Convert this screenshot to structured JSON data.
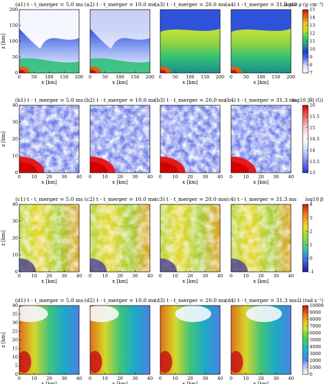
{
  "figure": {
    "rows": [
      {
        "id": "a",
        "titles": [
          "(a1) t - t_merger = 5.0 ms",
          "(a2) t - t_merger = 10.0 ms",
          "(a3) t - t_merger = 20.0 ms",
          "(a4) t - t_merger = 31.3 ms"
        ],
        "x_label": "x [km]",
        "y_label": "z [km]",
        "x_ticks": [
          "0",
          "50",
          "100",
          "150",
          "200"
        ],
        "x_range": [
          0,
          200
        ],
        "y_ticks": [
          "0",
          "50",
          "100",
          "150",
          "200"
        ],
        "y_range": [
          0,
          200
        ],
        "colorbar": {
          "label": "log10 ρ (g cm⁻³)",
          "ticks": [
            "7",
            "8",
            "9",
            "10",
            "11",
            "12",
            "13",
            "14",
            "15"
          ],
          "range": [
            7,
            15
          ],
          "colors": [
            "#ffffff",
            "#d8e3fb",
            "#5a78e8",
            "#1e3cc8",
            "#2a9a8a",
            "#2fcf63",
            "#bfe02a",
            "#f0c21a",
            "#e06a10",
            "#cf1010"
          ]
        }
      },
      {
        "id": "b",
        "titles": [
          "(b1) t - t_merger = 5.0 ms",
          "(b2) t - t_merger = 10.0 ms",
          "(b3) t - t_merger = 20.0 ms",
          "(b4) t - t_merger = 31.3 ms"
        ],
        "x_label": "x [km]",
        "y_label": "z [km]",
        "x_ticks": [
          "0",
          "10",
          "20",
          "30",
          "40"
        ],
        "x_range": [
          0,
          40
        ],
        "y_ticks": [
          "0",
          "10",
          "20",
          "30",
          "40"
        ],
        "y_range": [
          0,
          40
        ],
        "colorbar": {
          "label": "log10 |B| (G)",
          "ticks": [
            "13",
            "13.5",
            "14",
            "14.5",
            "15",
            "15.5",
            "16"
          ],
          "range": [
            13,
            16
          ],
          "colors": [
            "#2d2fd6",
            "#7a86ef",
            "#cfd6fb",
            "#ffffff",
            "#f7c9c9",
            "#ea6a6a",
            "#d40000"
          ]
        }
      },
      {
        "id": "c",
        "titles": [
          "(c1) t - t_merger = 5.0 ms",
          "(c2) t - t_merger = 10.0 ms",
          "(c3) t - t_merger = 20.0 ms",
          "(c4) t - t_merger = 31.3 ms"
        ],
        "x_label": "x [km]",
        "y_label": "z [km]",
        "x_ticks": [
          "0",
          "10",
          "20",
          "30",
          "40"
        ],
        "x_range": [
          0,
          40
        ],
        "y_ticks": [
          "0",
          "10",
          "20",
          "30",
          "40"
        ],
        "y_range": [
          0,
          40
        ],
        "colorbar": {
          "label": "log10 β",
          "ticks": [
            "-1",
            "0",
            "1",
            "2",
            "3",
            "4"
          ],
          "range": [
            -1,
            4
          ],
          "colors": [
            "#2a1a8c",
            "#3a6adf",
            "#36c2a6",
            "#8fd640",
            "#e8dc2a",
            "#f08a18",
            "#d21a10"
          ]
        }
      },
      {
        "id": "d",
        "titles": [
          "(d1) t - t_merger = 5.0 ms",
          "(d2) t - t_merger = 10.0 ms",
          "(d3) t - t_merger = 20.0 ms",
          "(d4) t - t_merger = 31.3 ms"
        ],
        "x_label": "x [km]",
        "y_label": "z [km]",
        "x_ticks": [
          "0",
          "10",
          "20",
          "30",
          "40"
        ],
        "x_range": [
          0,
          40
        ],
        "y_ticks": [
          "0",
          "5",
          "10",
          "15",
          "20",
          "25",
          "30",
          "35",
          "40"
        ],
        "y_range": [
          0,
          40
        ],
        "colorbar": {
          "label": "Ω (rad s⁻¹)",
          "ticks": [
            "0",
            "1000",
            "2000",
            "3000",
            "4000",
            "5000",
            "6000",
            "7000",
            "8000",
            "9000",
            "10000"
          ],
          "range": [
            0,
            10000
          ],
          "colors": [
            "#ffffff",
            "#b9c8f3",
            "#4f7de0",
            "#1fb0d8",
            "#2ec88e",
            "#5fd246",
            "#cfe12a",
            "#f0b81c",
            "#e0601a",
            "#c81414"
          ]
        }
      }
    ]
  }
}
